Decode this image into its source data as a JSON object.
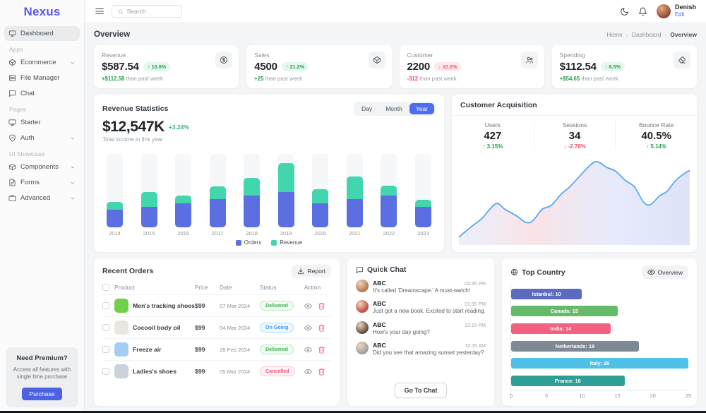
{
  "brand": {
    "name": "Nexus"
  },
  "header": {
    "search_placeholder": "Search",
    "user": {
      "name": "Denish",
      "action": "Edit"
    }
  },
  "sidebar": {
    "main_items": [
      {
        "label": "Dashboard",
        "icon": "dashboard",
        "active": true,
        "chevron": false
      }
    ],
    "sections": [
      {
        "title": "Apps",
        "items": [
          {
            "label": "Ecommerce",
            "icon": "package",
            "chevron": true
          },
          {
            "label": "File Manager",
            "icon": "server",
            "chevron": false
          },
          {
            "label": "Chat",
            "icon": "chat",
            "chevron": false
          }
        ]
      },
      {
        "title": "Pages",
        "items": [
          {
            "label": "Starter",
            "icon": "cast",
            "chevron": false
          },
          {
            "label": "Auth",
            "icon": "shield",
            "chevron": true
          }
        ]
      },
      {
        "title": "UI Showcase",
        "items": [
          {
            "label": "Components",
            "icon": "package",
            "chevron": true
          },
          {
            "label": "Forms",
            "icon": "file",
            "chevron": true
          },
          {
            "label": "Advanced",
            "icon": "briefcase",
            "chevron": true
          }
        ]
      }
    ],
    "premium": {
      "title": "Need Premium?",
      "desc": "Access all features with single time purchase",
      "button": "Purchase"
    }
  },
  "page": {
    "title": "Overview",
    "breadcrumbs": [
      "Home",
      "Dashboard",
      "Overview"
    ]
  },
  "stat_cards": [
    {
      "label": "Revenue",
      "value": "$587.54",
      "change": "10.8%",
      "direction": "up",
      "delta": "+$112.58",
      "suffix": "than past week",
      "icon": "dollar"
    },
    {
      "label": "Sales",
      "value": "4500",
      "change": "21.2%",
      "direction": "up",
      "delta": "+25",
      "suffix": "than past week",
      "icon": "package"
    },
    {
      "label": "Customer",
      "value": "2200",
      "change": "10.2%",
      "direction": "down",
      "delta": "-312",
      "suffix": "than past week",
      "icon": "users"
    },
    {
      "label": "Spending",
      "value": "$112.54",
      "change": "8.5%",
      "direction": "up",
      "delta": "+$54.65",
      "suffix": "than past week",
      "icon": "eraser"
    }
  ],
  "revenue_statistics": {
    "title": "Revenue Statistics",
    "total": "$12,547K",
    "change": "+3.24%",
    "subtitle": "Total income in this year",
    "tabs": [
      "Day",
      "Month",
      "Year"
    ],
    "active_tab": "Year"
  },
  "customer_acquisition": {
    "title": "Customer Acquisition",
    "stats": [
      {
        "label": "Users",
        "value": "427",
        "change": "3.15%",
        "direction": "up"
      },
      {
        "label": "Sessions",
        "value": "34",
        "change": "-2.78%",
        "direction": "down"
      },
      {
        "label": "Bounce Rate",
        "value": "40.5%",
        "change": "5.14%",
        "direction": "up"
      }
    ]
  },
  "chart_data": [
    {
      "type": "bar",
      "stacked": true,
      "title": "Revenue Statistics",
      "categories": [
        "2014",
        "2015",
        "2016",
        "2017",
        "2018",
        "2019",
        "2020",
        "2021",
        "2022",
        "2023"
      ],
      "series": [
        {
          "name": "Orders",
          "color": "#5b6fe0",
          "values": [
            24,
            28,
            33,
            38,
            43,
            48,
            33,
            38,
            43,
            28
          ]
        },
        {
          "name": "Revenue",
          "color": "#43d6ae",
          "values": [
            11,
            20,
            10,
            18,
            24,
            40,
            19,
            31,
            14,
            10
          ]
        }
      ],
      "ylim": [
        0,
        100
      ],
      "grid": false,
      "legend_position": "bottom"
    },
    {
      "type": "area",
      "title": "Customer Acquisition trend",
      "line_color": "#4da3f7",
      "gradient": [
        "#e9edfb",
        "#f7dfe3",
        "#e2e7fb",
        "#d9def6"
      ],
      "points": [
        [
          0,
          4
        ],
        [
          6,
          18
        ],
        [
          10,
          27
        ],
        [
          16,
          45
        ],
        [
          20,
          38
        ],
        [
          25,
          30
        ],
        [
          29,
          22
        ],
        [
          32,
          24
        ],
        [
          36,
          38
        ],
        [
          40,
          43
        ],
        [
          44,
          56
        ],
        [
          48,
          66
        ],
        [
          52,
          78
        ],
        [
          57,
          93
        ],
        [
          60,
          97
        ],
        [
          64,
          90
        ],
        [
          68,
          85
        ],
        [
          72,
          74
        ],
        [
          76,
          66
        ],
        [
          80,
          47
        ],
        [
          83,
          44
        ],
        [
          87,
          55
        ],
        [
          90,
          60
        ],
        [
          94,
          74
        ],
        [
          98,
          83
        ],
        [
          100,
          86
        ]
      ],
      "xlim": [
        0,
        100
      ],
      "ylim": [
        0,
        100
      ],
      "grid": false
    },
    {
      "type": "bar",
      "orientation": "horizontal",
      "title": "Top Country",
      "categories": [
        "Istanbul",
        "Canada",
        "India",
        "Netherlands",
        "Italy",
        "France"
      ],
      "values": [
        10,
        15,
        14,
        18,
        25,
        16
      ],
      "bar_colors": [
        "#5c6bc0",
        "#66bb6a",
        "#f2617f",
        "#7f8993",
        "#4fc0e8",
        "#2e9e96"
      ],
      "x_ticks": [
        0,
        5,
        10,
        15,
        20,
        25
      ],
      "xlim": [
        0,
        25
      ],
      "grid": false
    }
  ],
  "recent_orders": {
    "title": "Recent Orders",
    "report_button": "Report",
    "columns": [
      "Product",
      "Price",
      "Date",
      "Status",
      "Action"
    ],
    "rows": [
      {
        "product": "Men's tracking shoes",
        "price": "$99",
        "date": "07 Mar 2024",
        "status": "Delivered",
        "status_key": "delivered",
        "thumb_color": "#72d14b"
      },
      {
        "product": "Cocooil body oil",
        "price": "$99",
        "date": "04 Mar 2024",
        "status": "On Going",
        "status_key": "ongoing",
        "thumb_color": "#e9e7e2"
      },
      {
        "product": "Freeze air",
        "price": "$99",
        "date": "28 Feb 2024",
        "status": "Delivered",
        "status_key": "delivered",
        "thumb_color": "#a3cdf2"
      },
      {
        "product": "Ladies's shoes",
        "price": "$99",
        "date": "05 Mar 2024",
        "status": "Cancelled",
        "status_key": "cancelled",
        "thumb_color": "#ccd2da"
      }
    ]
  },
  "quick_chat": {
    "title": "Quick Chat",
    "button": "Go To Chat",
    "messages": [
      {
        "name": "ABC",
        "time": "03:35 PM",
        "text": "It's called 'Dreamscape.' A must-watch!",
        "avatar_color": "#b4764f"
      },
      {
        "name": "ABC",
        "time": "01:55 PM",
        "text": "Just got a new book. Excited to start reading.",
        "avatar_color": "#c14b45"
      },
      {
        "name": "ABC",
        "time": "12:15 PM",
        "text": "How's your day going?",
        "avatar_color": "#5d4a3e"
      },
      {
        "name": "ABC",
        "time": "10:35 AM",
        "text": "Did you see that amazing sunset yesterday?",
        "avatar_color": "#9aa0a6"
      }
    ]
  },
  "top_country": {
    "title": "Top Country",
    "overview_button": "Overview"
  }
}
